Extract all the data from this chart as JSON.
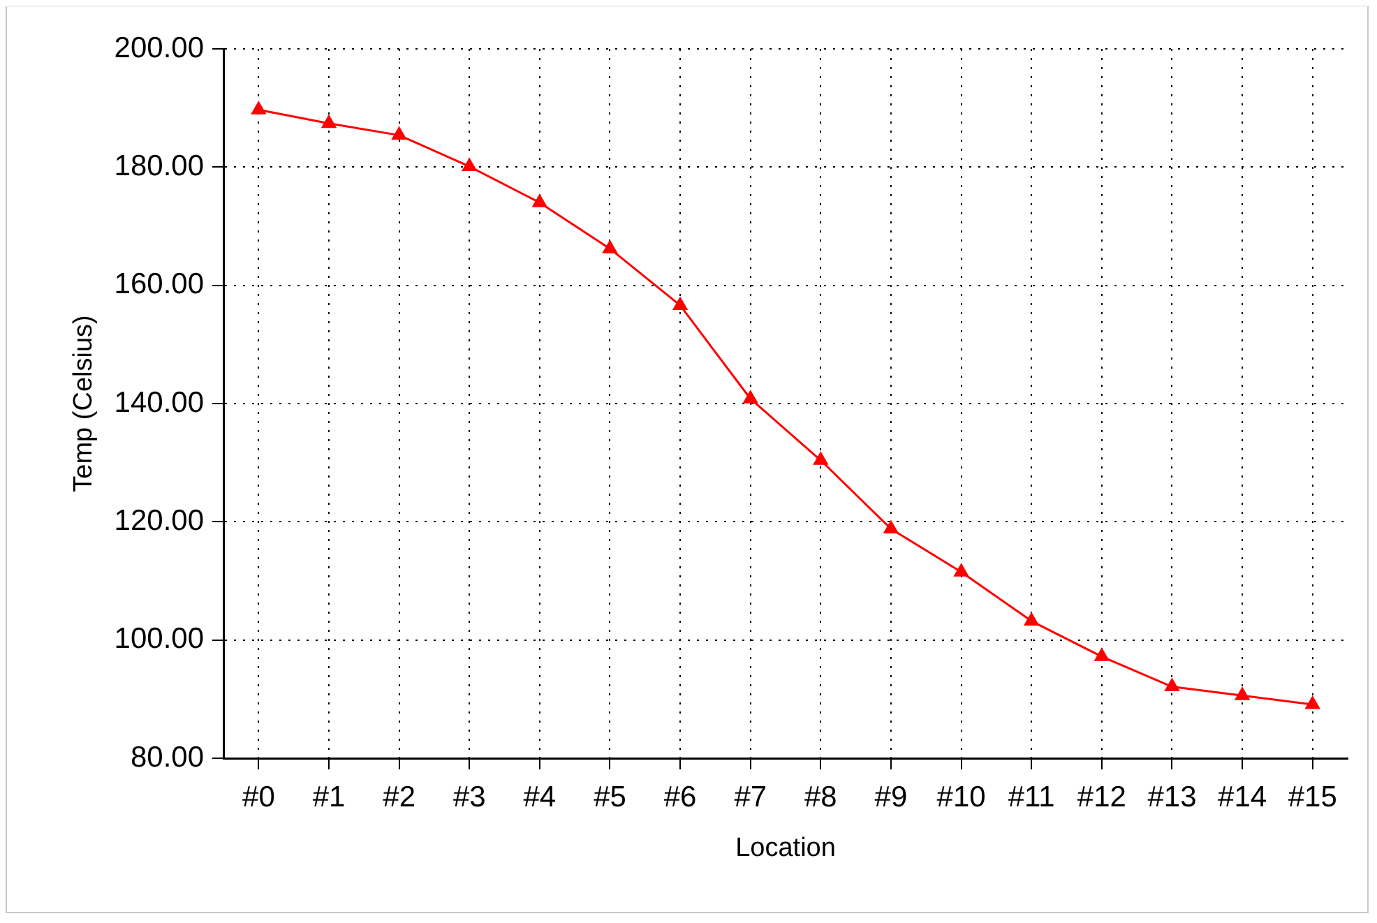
{
  "chart_data": {
    "type": "line",
    "xlabel": "Location",
    "ylabel": "Temp (Celsius)",
    "categories": [
      "#0",
      "#1",
      "#2",
      "#3",
      "#4",
      "#5",
      "#6",
      "#7",
      "#8",
      "#9",
      "#10",
      "#11",
      "#12",
      "#13",
      "#14",
      "#15"
    ],
    "series": [
      {
        "color": "#ff0000",
        "values": [
          189.7,
          187.4,
          185.4,
          180.1,
          174.0,
          166.2,
          156.6,
          140.8,
          130.4,
          118.8,
          111.5,
          103.2,
          97.2,
          92.1,
          90.6,
          89.1
        ]
      }
    ],
    "ylim": [
      80,
      200
    ],
    "yticks": [
      {
        "value": 80,
        "label": "80.00"
      },
      {
        "value": 100,
        "label": "100.00"
      },
      {
        "value": 120,
        "label": "120.00"
      },
      {
        "value": 140,
        "label": "140.00"
      },
      {
        "value": 160,
        "label": "160.00"
      },
      {
        "value": 180,
        "label": "180.00"
      },
      {
        "value": 200,
        "label": "200.00"
      }
    ],
    "grid": true,
    "legend": false,
    "marker": "triangle",
    "line_style": "solid"
  }
}
